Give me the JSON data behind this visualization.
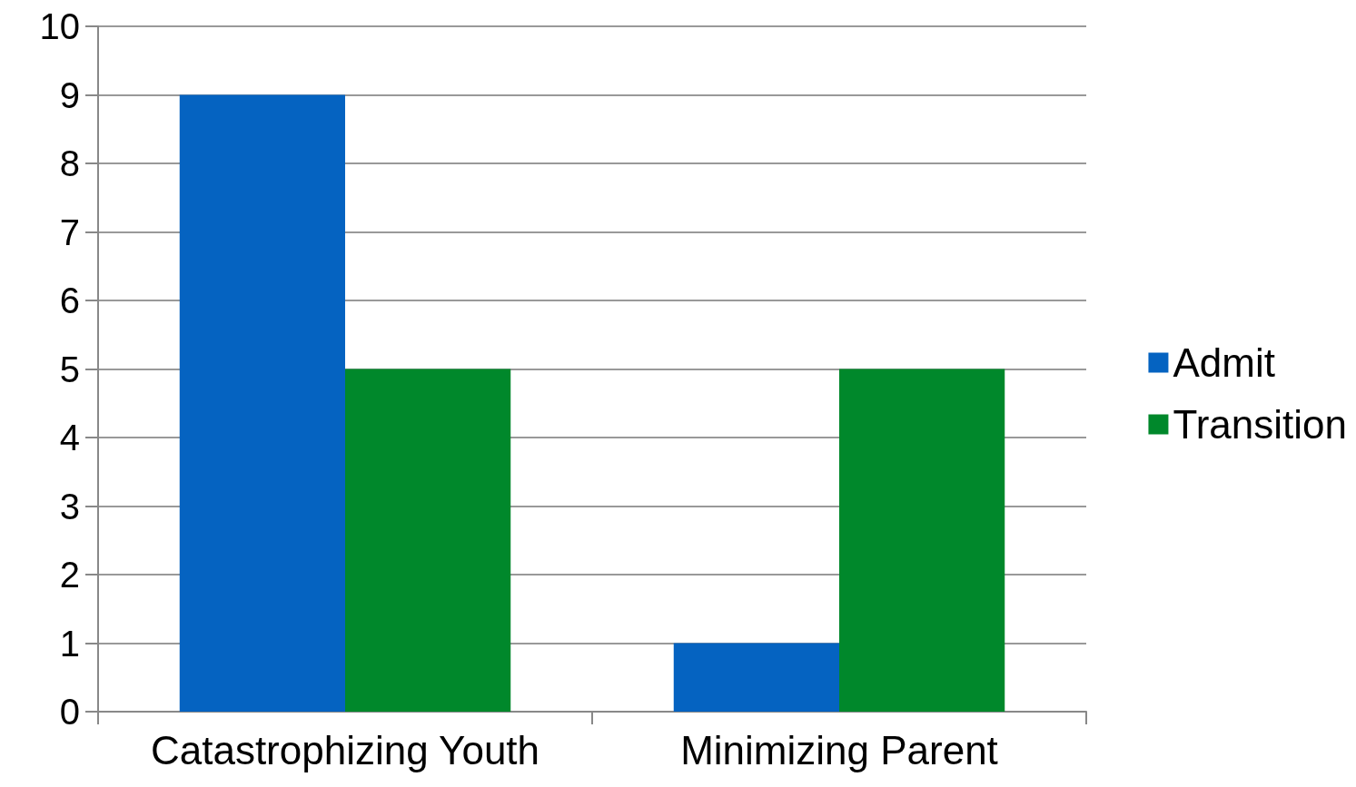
{
  "chart_data": {
    "type": "bar",
    "categories": [
      "Catastrophizing Youth",
      "Minimizing Parent"
    ],
    "series": [
      {
        "name": "Admit",
        "color": "#0563c1",
        "values": [
          9,
          1
        ]
      },
      {
        "name": "Transition",
        "color": "#00882b",
        "values": [
          5,
          5
        ]
      }
    ],
    "ylim": [
      0,
      10
    ],
    "yticks": [
      0,
      1,
      2,
      3,
      4,
      5,
      6,
      7,
      8,
      9,
      10
    ],
    "grid": "y",
    "legend": "right"
  }
}
